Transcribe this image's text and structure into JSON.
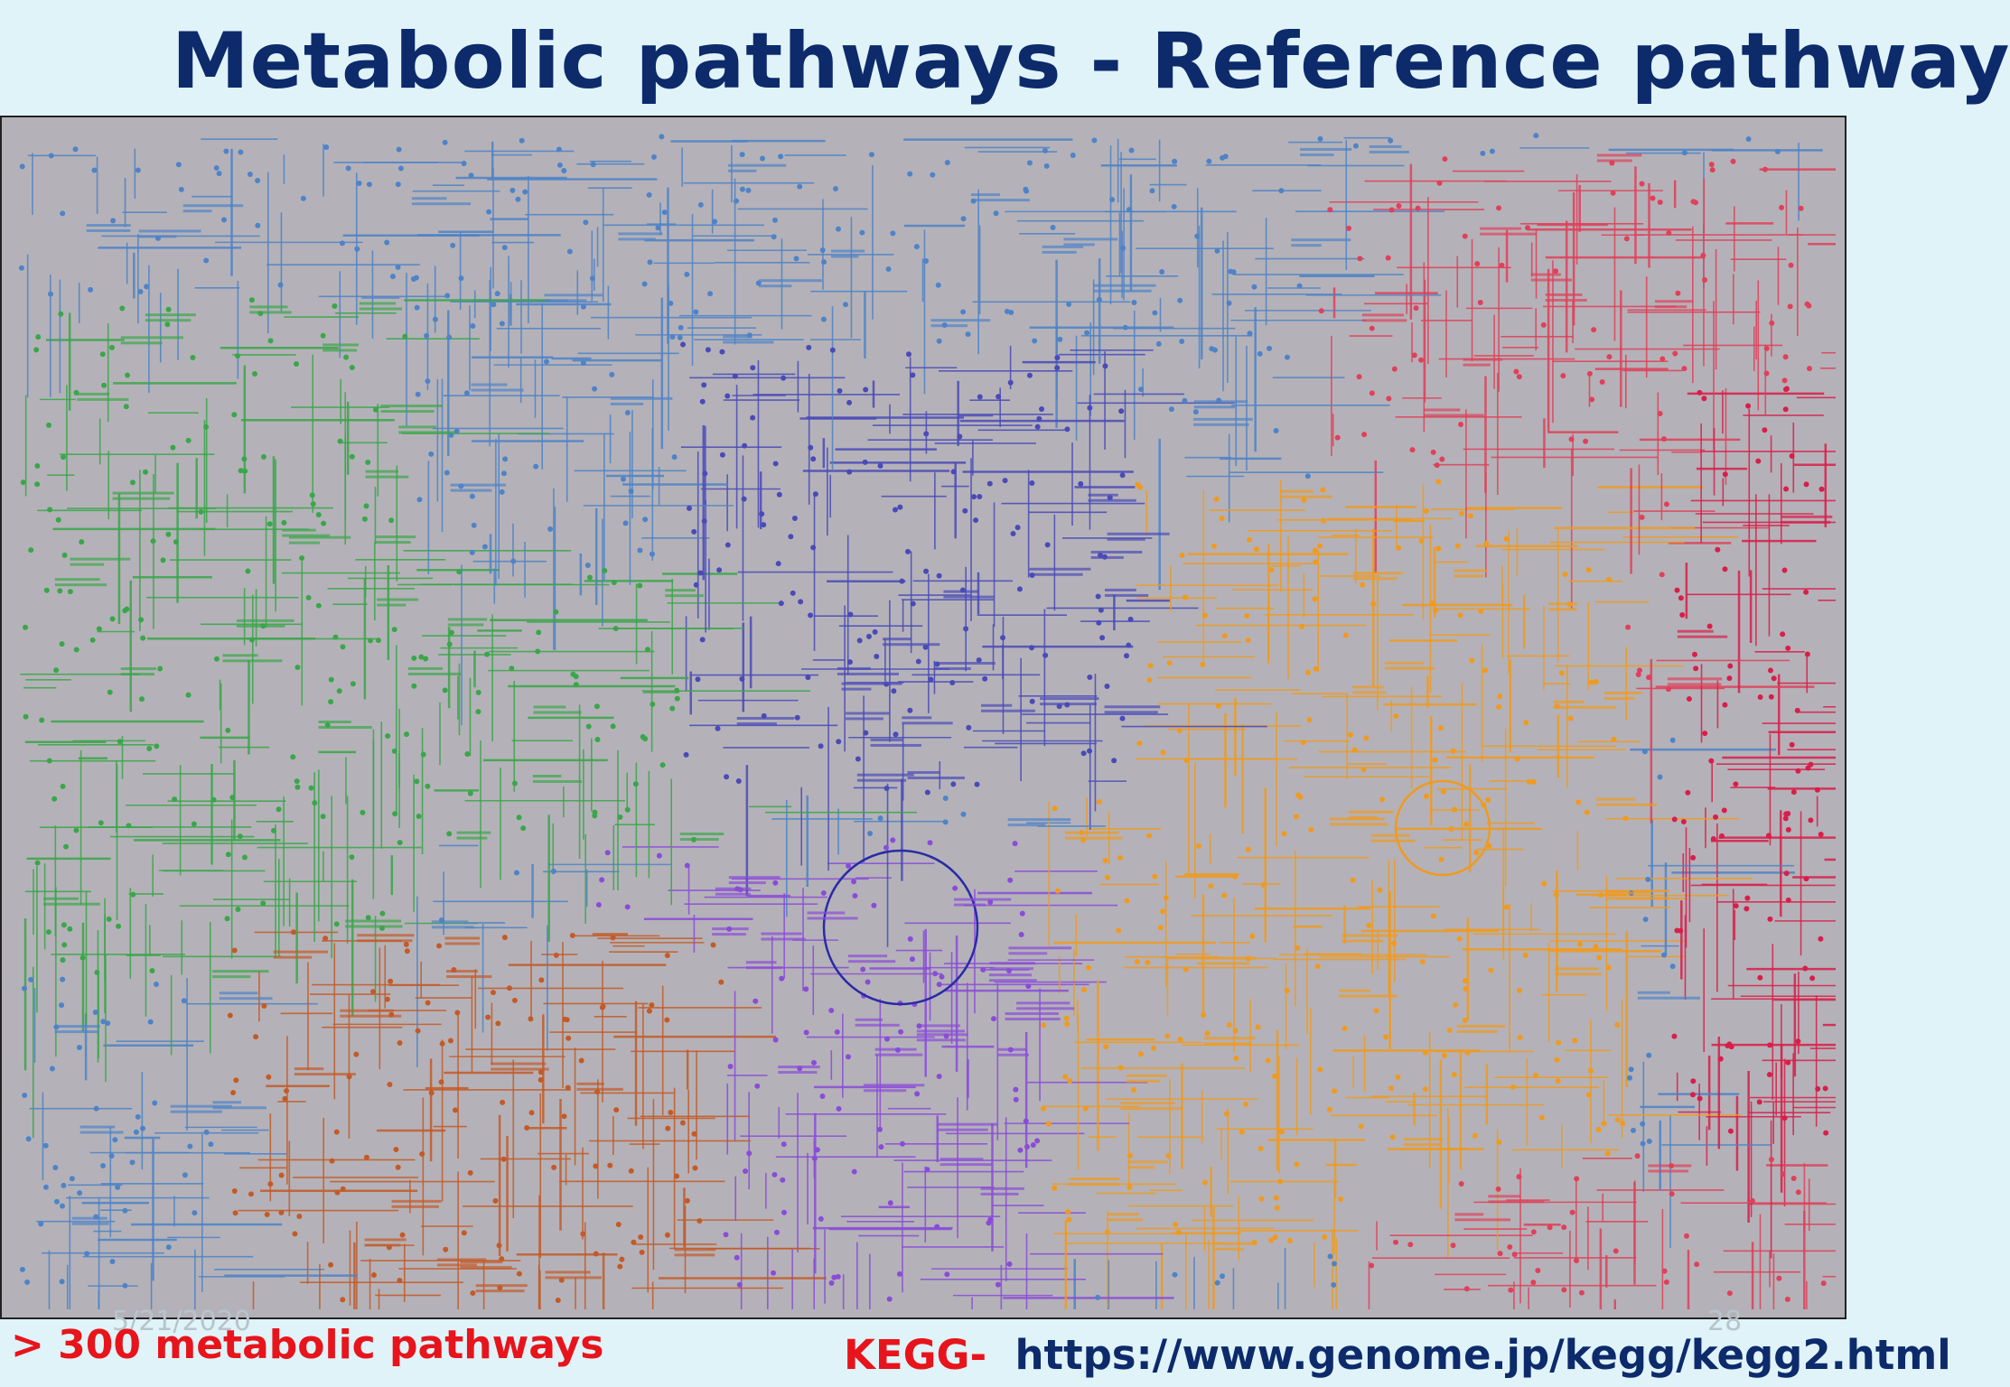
{
  "slide": {
    "title": "Metabolic pathways - Reference pathway",
    "date": "5/21/2020",
    "page_number": "28"
  },
  "footer": {
    "left_text": "> 300 metabolic pathways",
    "kegg_label": "KEGG",
    "separator": "-",
    "url": "https://www.genome.jp/kegg/kegg2.html"
  },
  "map": {
    "background": "#b4b2b8",
    "region_colors": {
      "lipid": "#4f83c7",
      "glycan": "#3aa64a",
      "amino_acid": "#f09a1e",
      "nucleotide": "#e0405a",
      "carbohydrate": "#2a2aa8",
      "terpenoid": "#8a4cd8",
      "xenobiotic": "#c45a28",
      "cofactor": "#d91e4a",
      "energy": "#4a4ab8"
    }
  }
}
